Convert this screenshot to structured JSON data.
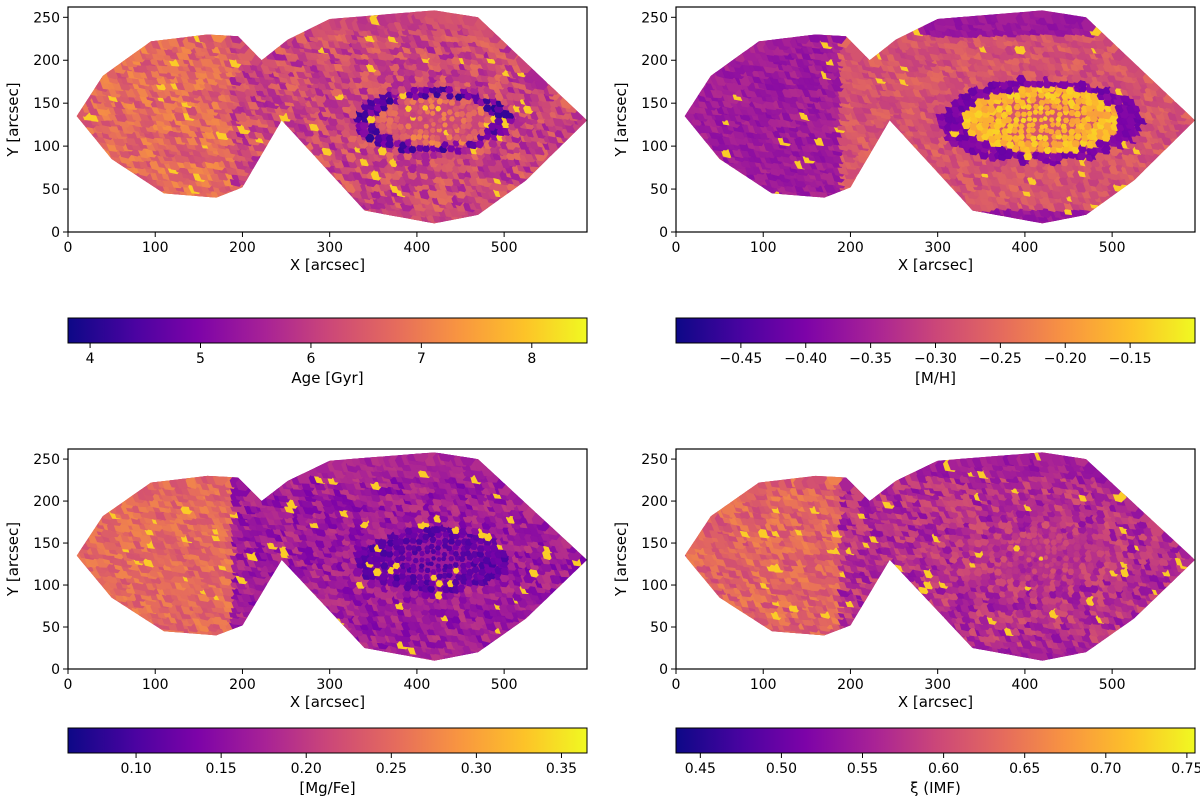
{
  "chart_data": [
    {
      "type": "heatmap",
      "xlabel": "X [arcsec]",
      "ylabel": "Y [arcsec]",
      "xlim": [
        0,
        595
      ],
      "ylim": [
        0,
        262
      ],
      "xticks": [
        0,
        100,
        200,
        300,
        400,
        500
      ],
      "yticks": [
        0,
        50,
        100,
        150,
        200,
        250
      ],
      "colorbar": {
        "label": "Age [Gyr]",
        "colormap": "plasma",
        "range": [
          3.8,
          8.5
        ],
        "ticks": [
          4,
          5,
          6,
          7,
          8
        ],
        "tick_labels": [
          "4",
          "5",
          "6",
          "7",
          "8"
        ]
      },
      "map": {
        "base": 0.5,
        "spread": 0.28,
        "center_mode": "ring",
        "center_value": 0.35,
        "left_value": 0.62,
        "edge_value": 0.5,
        "seed": 11
      }
    },
    {
      "type": "heatmap",
      "xlabel": "X [arcsec]",
      "ylabel": "Y [arcsec]",
      "xlim": [
        0,
        595
      ],
      "ylim": [
        0,
        262
      ],
      "xticks": [
        0,
        100,
        200,
        300,
        400,
        500
      ],
      "yticks": [
        0,
        50,
        100,
        150,
        200,
        250
      ],
      "colorbar": {
        "label": "[M/H]",
        "colormap": "plasma",
        "range": [
          -0.5,
          -0.1
        ],
        "ticks": [
          -0.45,
          -0.4,
          -0.35,
          -0.3,
          -0.25,
          -0.2,
          -0.15
        ],
        "tick_labels": [
          "−0.45",
          "−0.40",
          "−0.35",
          "−0.30",
          "−0.25",
          "−0.20",
          "−0.15"
        ]
      },
      "map": {
        "base": 0.55,
        "spread": 0.16,
        "center_mode": "bright-ring",
        "center_value": 0.85,
        "left_value": 0.35,
        "edge_value": 0.12,
        "seed": 23
      }
    },
    {
      "type": "heatmap",
      "xlabel": "X [arcsec]",
      "ylabel": "Y [arcsec]",
      "xlim": [
        0,
        595
      ],
      "ylim": [
        0,
        262
      ],
      "xticks": [
        0,
        100,
        200,
        300,
        400,
        500
      ],
      "yticks": [
        0,
        50,
        100,
        150,
        200,
        250
      ],
      "colorbar": {
        "label": "[Mg/Fe]",
        "colormap": "plasma",
        "range": [
          0.06,
          0.365
        ],
        "ticks": [
          0.1,
          0.15,
          0.2,
          0.25,
          0.3,
          0.35
        ],
        "tick_labels": [
          "0.10",
          "0.15",
          "0.20",
          "0.25",
          "0.30",
          "0.35"
        ]
      },
      "map": {
        "base": 0.35,
        "spread": 0.22,
        "center_mode": "dark",
        "center_value": 0.18,
        "left_value": 0.62,
        "edge_value": 0.42,
        "seed": 37
      }
    },
    {
      "type": "heatmap",
      "xlabel": "X [arcsec]",
      "ylabel": "Y [arcsec]",
      "xlim": [
        0,
        595
      ],
      "ylim": [
        0,
        262
      ],
      "xticks": [
        0,
        100,
        200,
        300,
        400,
        500
      ],
      "yticks": [
        0,
        50,
        100,
        150,
        200,
        250
      ],
      "colorbar": {
        "label": "ξ (IMF)",
        "colormap": "plasma",
        "range": [
          0.435,
          0.755
        ],
        "ticks": [
          0.45,
          0.5,
          0.55,
          0.6,
          0.65,
          0.7,
          0.75
        ],
        "tick_labels": [
          "0.45",
          "0.50",
          "0.55",
          "0.60",
          "0.65",
          "0.70",
          "0.75"
        ]
      },
      "map": {
        "base": 0.42,
        "spread": 0.26,
        "center_mode": "mixed",
        "center_value": 0.45,
        "left_value": 0.6,
        "edge_value": 0.3,
        "seed": 53
      }
    }
  ]
}
